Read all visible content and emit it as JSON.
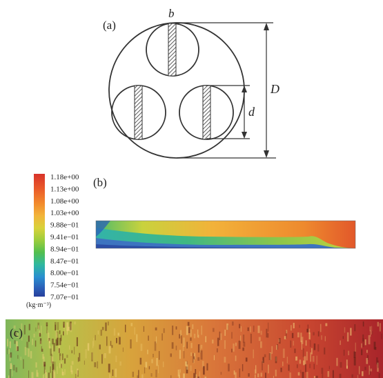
{
  "panels": {
    "a": {
      "label": "(a)",
      "dims": {
        "b": "b",
        "D": "D",
        "d": "d"
      }
    },
    "b": {
      "label": "(b)"
    },
    "c": {
      "label": "(c)"
    }
  },
  "colorbar": {
    "ticks": [
      "1.18e+00",
      "1.13e+00",
      "1.08e+00",
      "1.03e+00",
      "9.88e−01",
      "9.41e−01",
      "8.94e−01",
      "8.47e−01",
      "8.00e−01",
      "7.54e−01",
      "7.07e−01"
    ],
    "unit": "(kg·m⁻³)",
    "colors": [
      "#d8332a",
      "#ea5a2a",
      "#f28a2c",
      "#f2b43a",
      "#d9d23a",
      "#9ccd3c",
      "#53bf4e",
      "#2fb8a0",
      "#2a8fd0",
      "#2b5fb8",
      "#273f9c"
    ]
  }
}
